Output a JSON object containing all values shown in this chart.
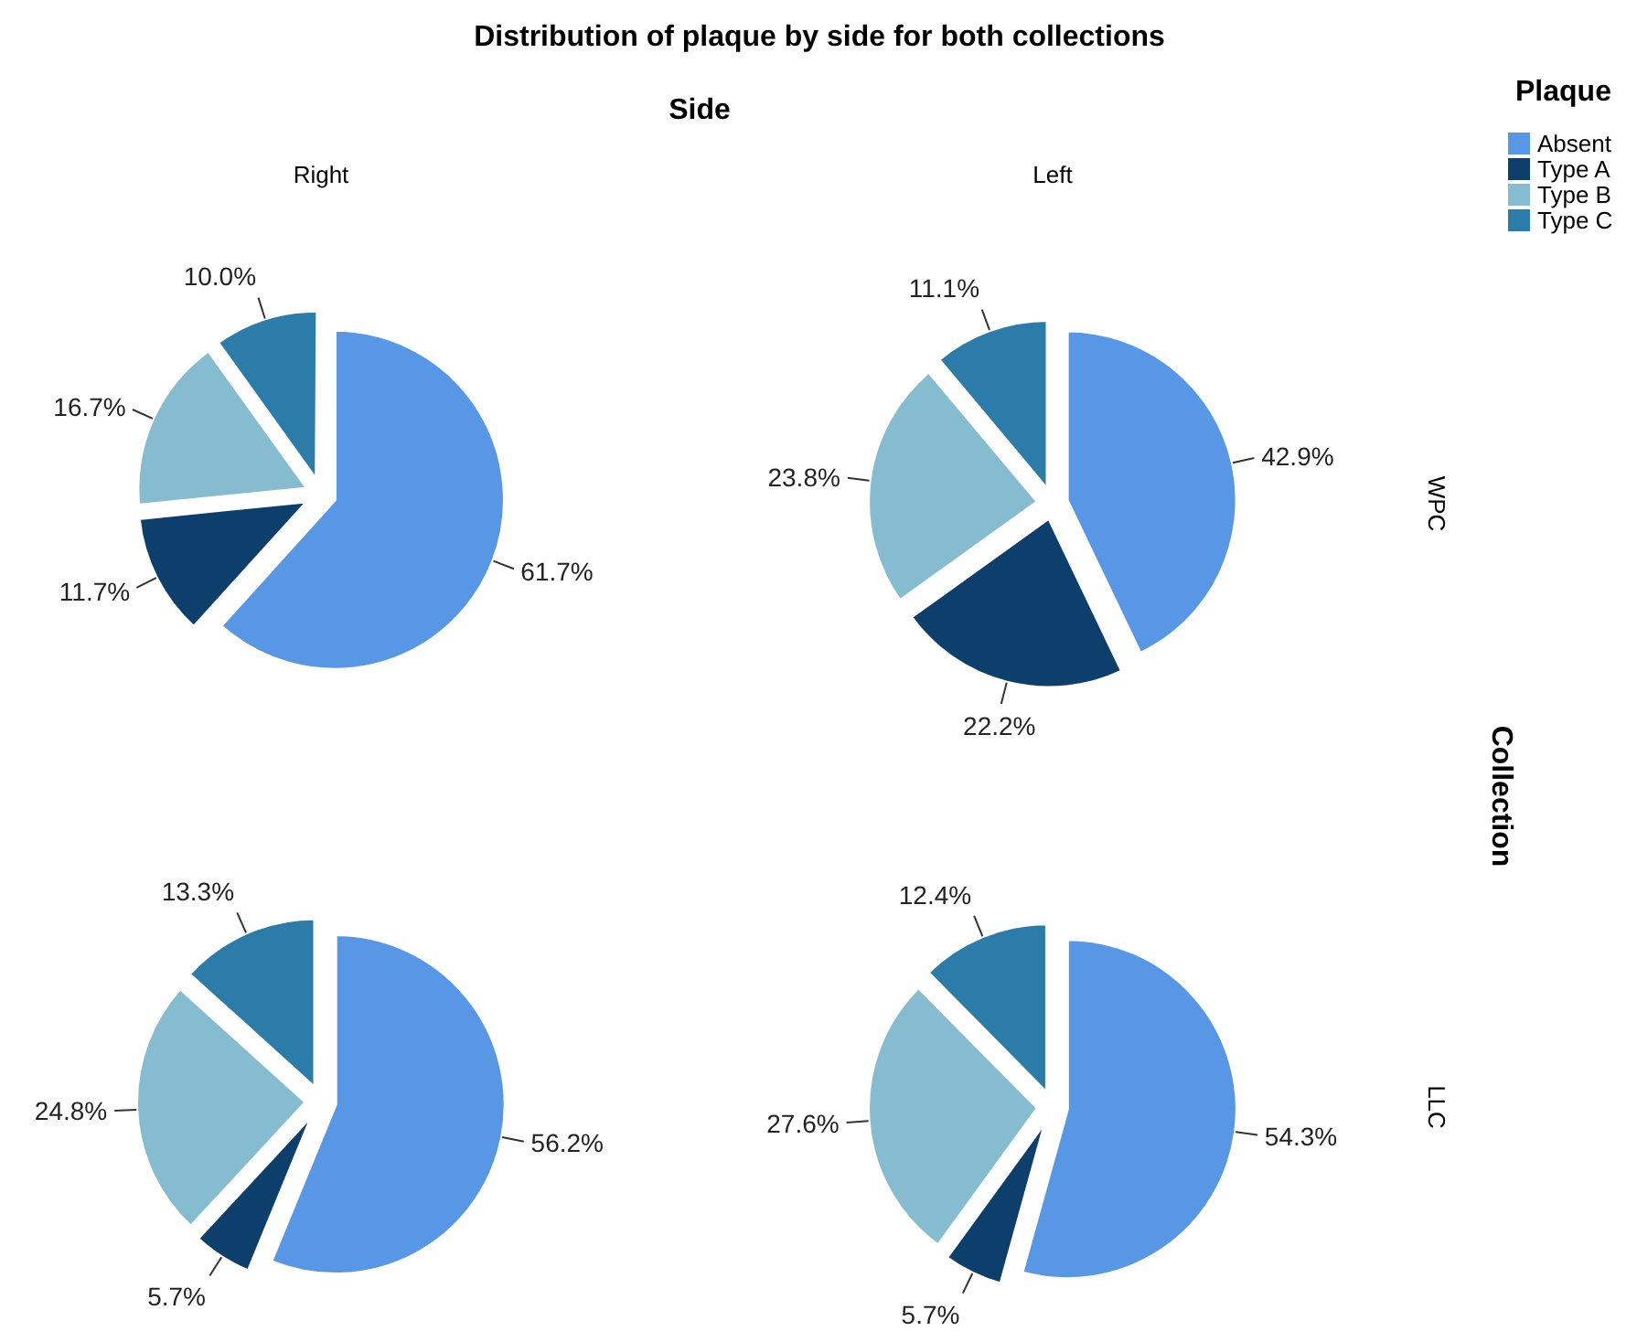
{
  "chart_data": [
    {
      "type": "pie",
      "title": "Distribution of plaque by side for both collections",
      "annotations": [
        "Side",
        "Collection"
      ],
      "subtitle": "Right",
      "legend": "top right",
      "legend_title": "Plaque",
      "categories": [
        "Absent",
        "Type A",
        "Type B",
        "Type C"
      ],
      "colors": [
        "#5897e6",
        "#0d3f6c",
        "#86bccf",
        "#2b7ca9"
      ],
      "values": [
        61.7,
        11.7,
        16.7,
        10.0
      ],
      "value_labels": [
        "61.7%",
        "11.7%",
        "16.7%",
        "10.0%"
      ]
    },
    {
      "type": "pie",
      "subtitle": "Left",
      "y2label": "WPC",
      "colors": [
        "#5897e6",
        "#0d3f6c",
        "#86bccf",
        "#2b7ca9"
      ],
      "values": [
        42.9,
        22.2,
        23.8,
        11.1
      ],
      "value_labels": [
        "42.9%",
        "22.2%",
        "23.8%",
        "11.1%"
      ]
    },
    {
      "type": "pie",
      "colors": [
        "#5897e6",
        "#0d3f6c",
        "#86bccf",
        "#2b7ca9"
      ],
      "values": [
        56.2,
        5.7,
        24.8,
        13.3
      ],
      "value_labels": [
        "56.2%",
        "5.7%",
        "24.8%",
        "13.3%"
      ]
    },
    {
      "type": "pie",
      "y2label": "LLC",
      "colors": [
        "#5897e6",
        "#0d3f6c",
        "#86bccf",
        "#2b7ca9"
      ],
      "values": [
        54.3,
        5.7,
        27.6,
        12.4
      ],
      "value_labels": [
        "54.3%",
        "5.7%",
        "27.6%",
        "12.4%"
      ]
    }
  ]
}
